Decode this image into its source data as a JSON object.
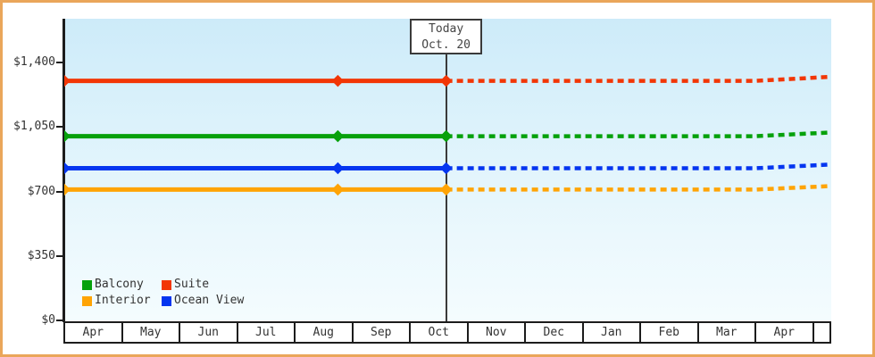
{
  "window": {
    "frame_color": "#EAA65A",
    "background": "#FFFFFF"
  },
  "chart_data": {
    "type": "line",
    "title": "",
    "x_categories": [
      "Apr",
      "May",
      "Jun",
      "Jul",
      "Aug",
      "Sep",
      "Oct",
      "Nov",
      "Dec",
      "Jan",
      "Feb",
      "Mar",
      "Apr"
    ],
    "y_axis": {
      "ticks": [
        {
          "label": "$1,400",
          "value": 1400
        },
        {
          "label": "$1,050",
          "value": 1050
        },
        {
          "label": "$700",
          "value": 700
        },
        {
          "label": "$350",
          "value": 350
        },
        {
          "label": "$0",
          "value": 0
        }
      ],
      "ylim": [
        0,
        1470
      ]
    },
    "today": {
      "line1": "Today",
      "line2": "Oct. 20",
      "month_frac": 6.63
    },
    "marker_month_fracs": [
      0,
      4.75,
      6.63
    ],
    "projection": {
      "flat_until_frac": 12.0,
      "end_frac": 13.3,
      "style": "dashed"
    },
    "series": [
      {
        "name": "Suite",
        "color": "#F23605",
        "value": 1300,
        "projected_end_value": 1322
      },
      {
        "name": "Balcony",
        "color": "#06A10B",
        "value": 1000,
        "projected_end_value": 1020
      },
      {
        "name": "Ocean View",
        "color": "#0435F0",
        "value": 826,
        "projected_end_value": 846
      },
      {
        "name": "Interior",
        "color": "#FFA405",
        "value": 710,
        "projected_end_value": 729
      }
    ],
    "legend_position": "bottom-left",
    "grid": false
  },
  "legend": {
    "items": [
      {
        "label": "Balcony",
        "color": "#06A10B"
      },
      {
        "label": "Suite",
        "color": "#F23605"
      },
      {
        "label": "Interior",
        "color": "#FFA405"
      },
      {
        "label": "Ocean View",
        "color": "#0435F0"
      }
    ]
  }
}
